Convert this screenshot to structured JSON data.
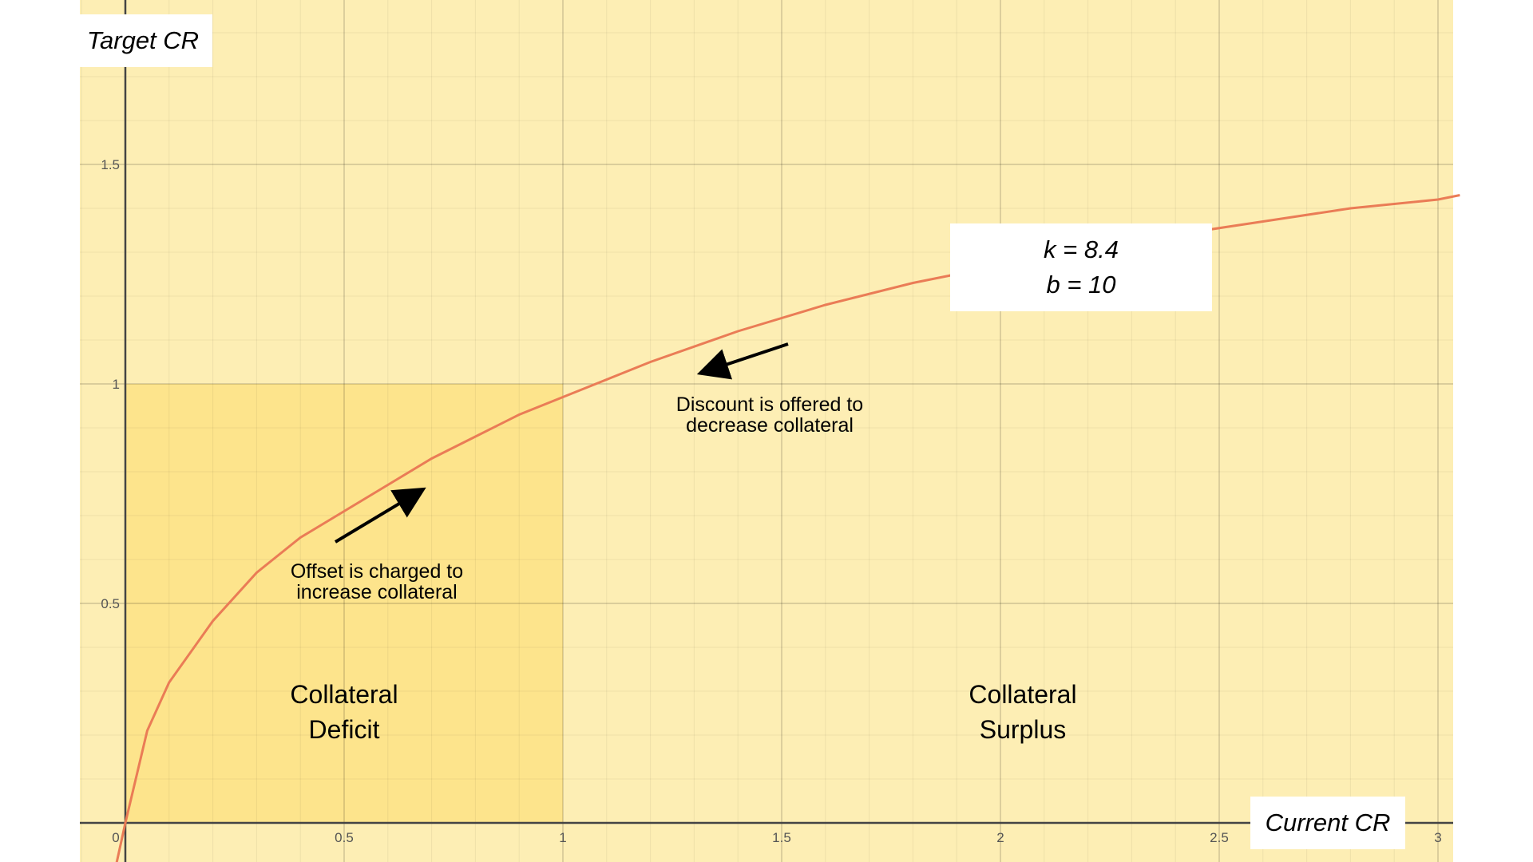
{
  "chart_data": {
    "type": "line",
    "xlabel": "Current CR",
    "ylabel": "Target CR",
    "xlim": [
      -0.1,
      3.05
    ],
    "ylim": [
      -0.1,
      1.88
    ],
    "x_ticks": [
      0,
      0.5,
      1,
      1.5,
      2,
      2.5,
      3
    ],
    "x_tick_labels": [
      "0",
      "0.5",
      "1",
      "1.5",
      "2",
      "2.5",
      "3"
    ],
    "y_ticks": [
      0.5,
      1,
      1.5
    ],
    "y_tick_labels": [
      "0.5",
      "1",
      "1.5"
    ],
    "grid": true,
    "curve": {
      "x": [
        0,
        0.05,
        0.1,
        0.2,
        0.3,
        0.4,
        0.5,
        0.6,
        0.7,
        0.8,
        0.9,
        1.0,
        1.2,
        1.4,
        1.6,
        1.8,
        2.0,
        2.2,
        2.4,
        2.6,
        2.8,
        3.0,
        3.05
      ],
      "y": [
        0,
        0.21,
        0.32,
        0.46,
        0.57,
        0.65,
        0.71,
        0.77,
        0.83,
        0.88,
        0.93,
        0.97,
        1.05,
        1.12,
        1.18,
        1.23,
        1.27,
        1.31,
        1.34,
        1.37,
        1.4,
        1.42,
        1.43
      ],
      "color": "#ea7c56"
    },
    "regions": [
      {
        "name": "Collateral Deficit",
        "x": [
          0,
          1
        ],
        "y": [
          0,
          1
        ],
        "color": "#fde48c"
      }
    ],
    "background_color": "#fdeeb4"
  },
  "labels": {
    "x_axis_title": "Current CR",
    "y_axis_title": "Target CR",
    "deficit_line1": "Collateral",
    "deficit_line2": "Deficit",
    "surplus_line1": "Collateral",
    "surplus_line2": "Surplus",
    "offset_line1": "Offset is charged to",
    "offset_line2": "increase collateral",
    "discount_line1": "Discount is offered to",
    "discount_line2": "decrease collateral",
    "param_k": "k = 8.4",
    "param_b": "b = 10"
  },
  "colors": {
    "background": "#fdeeb4",
    "deficit_region": "#fde48c",
    "curve": "#ea7c56",
    "axis": "#444444",
    "arrow": "#000000"
  }
}
